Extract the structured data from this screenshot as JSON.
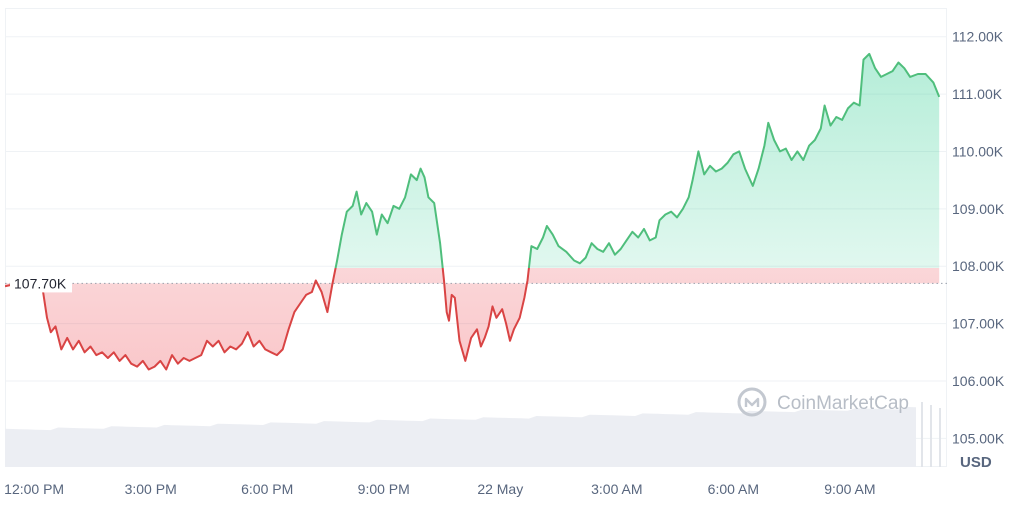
{
  "chart_data": {
    "type": "area",
    "currency_label": "USD",
    "reference_value": 107.7,
    "reference_label": "107.70K",
    "watermark": "CoinMarketCap",
    "y_ticks": [
      {
        "value": 112,
        "label": "112.00K"
      },
      {
        "value": 111,
        "label": "111.00K"
      },
      {
        "value": 110,
        "label": "110.00K"
      },
      {
        "value": 109,
        "label": "109.00K"
      },
      {
        "value": 108,
        "label": "108.00K"
      },
      {
        "value": 107,
        "label": "107.00K"
      },
      {
        "value": 106,
        "label": "106.00K"
      },
      {
        "value": 105,
        "label": "105.00K"
      }
    ],
    "x_ticks": [
      {
        "hour": 12,
        "label": "12:00 PM"
      },
      {
        "hour": 15,
        "label": "3:00 PM"
      },
      {
        "hour": 18,
        "label": "6:00 PM"
      },
      {
        "hour": 21,
        "label": "9:00 PM"
      },
      {
        "hour": 24,
        "label": "22 May"
      },
      {
        "hour": 27,
        "label": "3:00 AM"
      },
      {
        "hour": 30,
        "label": "6:00 AM"
      },
      {
        "hour": 33,
        "label": "9:00 AM"
      }
    ],
    "xlim": [
      11.25,
      35.5
    ],
    "ylim": [
      104.5,
      112.5
    ],
    "colors": {
      "up": "#16c784",
      "up_line": "#4fbe7c",
      "down": "#d94444",
      "grid": "#eff2f5",
      "volume": "#eceef3"
    },
    "series": [
      {
        "values": [
          [
            11.25,
            107.65
          ],
          [
            11.45,
            107.68
          ],
          [
            11.6,
            107.62
          ],
          [
            11.9,
            107.74
          ],
          [
            12.1,
            107.7
          ],
          [
            12.23,
            107.55
          ],
          [
            12.33,
            107.1
          ],
          [
            12.43,
            106.85
          ],
          [
            12.55,
            106.95
          ],
          [
            12.7,
            106.55
          ],
          [
            12.85,
            106.75
          ],
          [
            13.0,
            106.55
          ],
          [
            13.15,
            106.7
          ],
          [
            13.3,
            106.5
          ],
          [
            13.45,
            106.6
          ],
          [
            13.6,
            106.45
          ],
          [
            13.75,
            106.5
          ],
          [
            13.9,
            106.4
          ],
          [
            14.05,
            106.5
          ],
          [
            14.2,
            106.35
          ],
          [
            14.35,
            106.45
          ],
          [
            14.5,
            106.3
          ],
          [
            14.65,
            106.25
          ],
          [
            14.8,
            106.35
          ],
          [
            14.95,
            106.2
          ],
          [
            15.1,
            106.25
          ],
          [
            15.25,
            106.35
          ],
          [
            15.4,
            106.2
          ],
          [
            15.55,
            106.45
          ],
          [
            15.7,
            106.3
          ],
          [
            15.85,
            106.4
          ],
          [
            16.0,
            106.35
          ],
          [
            16.15,
            106.4
          ],
          [
            16.3,
            106.45
          ],
          [
            16.45,
            106.7
          ],
          [
            16.6,
            106.6
          ],
          [
            16.75,
            106.7
          ],
          [
            16.9,
            106.5
          ],
          [
            17.05,
            106.6
          ],
          [
            17.2,
            106.55
          ],
          [
            17.35,
            106.65
          ],
          [
            17.5,
            106.85
          ],
          [
            17.65,
            106.6
          ],
          [
            17.8,
            106.7
          ],
          [
            17.95,
            106.55
          ],
          [
            18.1,
            106.5
          ],
          [
            18.25,
            106.45
          ],
          [
            18.4,
            106.55
          ],
          [
            18.55,
            106.9
          ],
          [
            18.7,
            107.2
          ],
          [
            18.85,
            107.35
          ],
          [
            19.0,
            107.5
          ],
          [
            19.15,
            107.55
          ],
          [
            19.25,
            107.75
          ],
          [
            19.4,
            107.55
          ],
          [
            19.55,
            107.2
          ],
          [
            19.68,
            107.7
          ],
          [
            19.8,
            108.1
          ],
          [
            19.92,
            108.55
          ],
          [
            20.05,
            108.95
          ],
          [
            20.2,
            109.05
          ],
          [
            20.3,
            109.3
          ],
          [
            20.42,
            108.9
          ],
          [
            20.55,
            109.1
          ],
          [
            20.7,
            108.95
          ],
          [
            20.82,
            108.55
          ],
          [
            20.95,
            108.9
          ],
          [
            21.1,
            108.75
          ],
          [
            21.25,
            109.05
          ],
          [
            21.4,
            109.0
          ],
          [
            21.55,
            109.2
          ],
          [
            21.7,
            109.6
          ],
          [
            21.85,
            109.5
          ],
          [
            21.95,
            109.7
          ],
          [
            22.05,
            109.55
          ],
          [
            22.15,
            109.2
          ],
          [
            22.3,
            109.1
          ],
          [
            22.45,
            108.4
          ],
          [
            22.55,
            107.75
          ],
          [
            22.62,
            107.2
          ],
          [
            22.68,
            107.05
          ],
          [
            22.75,
            107.5
          ],
          [
            22.83,
            107.45
          ],
          [
            22.95,
            106.7
          ],
          [
            23.1,
            106.35
          ],
          [
            23.25,
            106.75
          ],
          [
            23.4,
            106.9
          ],
          [
            23.5,
            106.6
          ],
          [
            23.6,
            106.75
          ],
          [
            23.7,
            106.95
          ],
          [
            23.8,
            107.3
          ],
          [
            23.9,
            107.1
          ],
          [
            24.05,
            107.25
          ],
          [
            24.15,
            107.0
          ],
          [
            24.25,
            106.7
          ],
          [
            24.35,
            106.9
          ],
          [
            24.5,
            107.1
          ],
          [
            24.62,
            107.45
          ],
          [
            24.7,
            107.75
          ],
          [
            24.8,
            108.35
          ],
          [
            24.95,
            108.3
          ],
          [
            25.1,
            108.5
          ],
          [
            25.2,
            108.7
          ],
          [
            25.35,
            108.55
          ],
          [
            25.5,
            108.35
          ],
          [
            25.7,
            108.25
          ],
          [
            25.9,
            108.1
          ],
          [
            26.05,
            108.05
          ],
          [
            26.2,
            108.15
          ],
          [
            26.35,
            108.4
          ],
          [
            26.5,
            108.3
          ],
          [
            26.65,
            108.25
          ],
          [
            26.8,
            108.4
          ],
          [
            26.95,
            108.2
          ],
          [
            27.1,
            108.3
          ],
          [
            27.25,
            108.45
          ],
          [
            27.4,
            108.6
          ],
          [
            27.55,
            108.5
          ],
          [
            27.7,
            108.65
          ],
          [
            27.85,
            108.45
          ],
          [
            28.0,
            108.5
          ],
          [
            28.1,
            108.8
          ],
          [
            28.25,
            108.9
          ],
          [
            28.4,
            108.95
          ],
          [
            28.55,
            108.85
          ],
          [
            28.7,
            109.0
          ],
          [
            28.85,
            109.2
          ],
          [
            28.95,
            109.5
          ],
          [
            29.1,
            110.0
          ],
          [
            29.25,
            109.6
          ],
          [
            29.4,
            109.75
          ],
          [
            29.55,
            109.65
          ],
          [
            29.7,
            109.7
          ],
          [
            29.85,
            109.8
          ],
          [
            30.0,
            109.95
          ],
          [
            30.15,
            110.0
          ],
          [
            30.3,
            109.7
          ],
          [
            30.5,
            109.4
          ],
          [
            30.65,
            109.7
          ],
          [
            30.8,
            110.1
          ],
          [
            30.9,
            110.5
          ],
          [
            31.05,
            110.2
          ],
          [
            31.2,
            110.0
          ],
          [
            31.35,
            110.05
          ],
          [
            31.5,
            109.85
          ],
          [
            31.65,
            110.0
          ],
          [
            31.8,
            109.85
          ],
          [
            31.95,
            110.1
          ],
          [
            32.1,
            110.2
          ],
          [
            32.25,
            110.4
          ],
          [
            32.35,
            110.8
          ],
          [
            32.5,
            110.45
          ],
          [
            32.65,
            110.6
          ],
          [
            32.8,
            110.55
          ],
          [
            32.95,
            110.75
          ],
          [
            33.1,
            110.85
          ],
          [
            33.25,
            110.8
          ],
          [
            33.35,
            111.6
          ],
          [
            33.5,
            111.7
          ],
          [
            33.65,
            111.45
          ],
          [
            33.8,
            111.3
          ],
          [
            33.95,
            111.35
          ],
          [
            34.1,
            111.4
          ],
          [
            34.25,
            111.55
          ],
          [
            34.4,
            111.45
          ],
          [
            34.55,
            111.3
          ],
          [
            34.75,
            111.35
          ],
          [
            34.95,
            111.35
          ],
          [
            35.15,
            111.2
          ],
          [
            35.3,
            110.95
          ]
        ]
      }
    ]
  }
}
